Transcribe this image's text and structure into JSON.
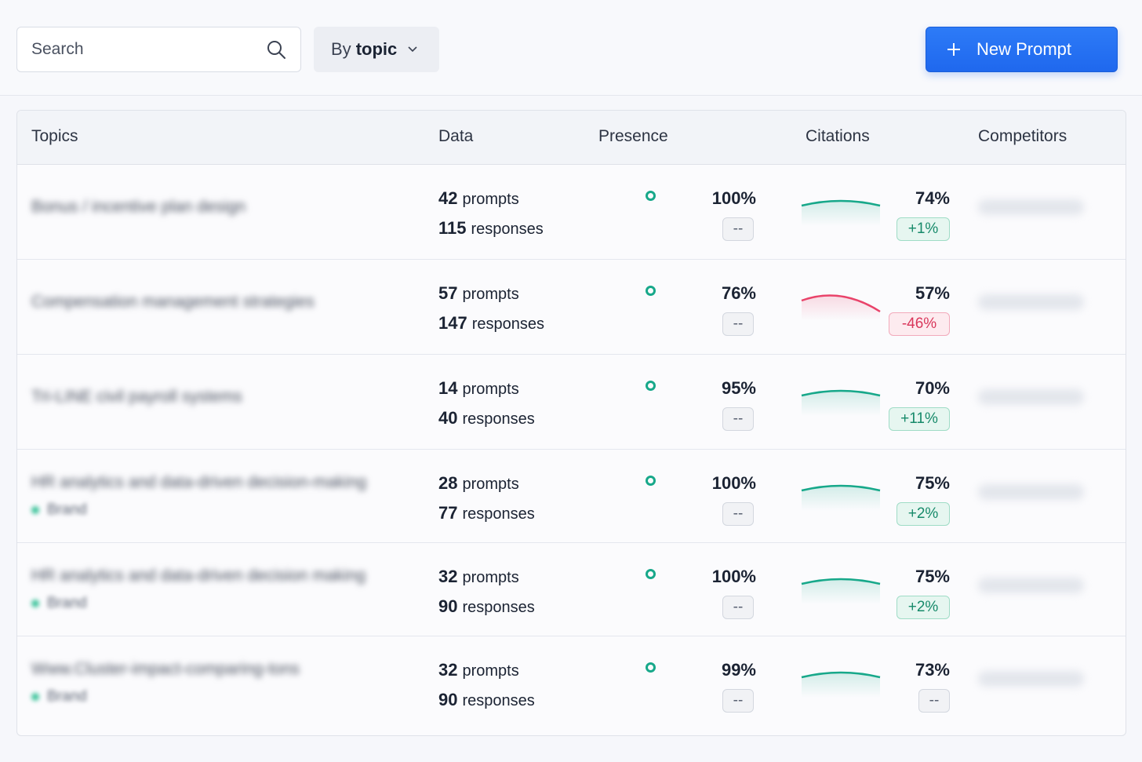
{
  "toolbar": {
    "search_placeholder": "Search",
    "group_prefix": "By",
    "group_value": "topic",
    "new_prompt_label": "New Prompt"
  },
  "table": {
    "headers": [
      "Topics",
      "Data",
      "Presence",
      "Citations",
      "Competitors"
    ],
    "rows": [
      {
        "topic": "Bonus / incentive plan design",
        "brand": "",
        "prompts": "42",
        "prompts_label": "prompts",
        "responses": "115",
        "responses_label": "responses",
        "presence": "100%",
        "presence_change": "--",
        "citations": "74%",
        "citations_change": "+1%",
        "trend": "up"
      },
      {
        "topic": "Compensation management strategies",
        "brand": "",
        "prompts": "57",
        "prompts_label": "prompts",
        "responses": "147",
        "responses_label": "responses",
        "presence": "76%",
        "presence_change": "--",
        "citations": "57%",
        "citations_change": "-46%",
        "trend": "down"
      },
      {
        "topic": "Tri-LINE civil payroll systems",
        "brand": "",
        "prompts": "14",
        "prompts_label": "prompts",
        "responses": "40",
        "responses_label": "responses",
        "presence": "95%",
        "presence_change": "--",
        "citations": "70%",
        "citations_change": "+11%",
        "trend": "up"
      },
      {
        "topic": "HR analytics and data-driven decision-making",
        "brand": "Brand",
        "prompts": "28",
        "prompts_label": "prompts",
        "responses": "77",
        "responses_label": "responses",
        "presence": "100%",
        "presence_change": "--",
        "citations": "75%",
        "citations_change": "+2%",
        "trend": "up"
      },
      {
        "topic": "HR analytics and data-driven decision making",
        "brand": "Brand",
        "prompts": "32",
        "prompts_label": "prompts",
        "responses": "90",
        "responses_label": "responses",
        "presence": "100%",
        "presence_change": "--",
        "citations": "75%",
        "citations_change": "+2%",
        "trend": "up"
      },
      {
        "topic": "Www.Cluster-impact-comparing-tons",
        "brand": "Brand",
        "prompts": "32",
        "prompts_label": "prompts",
        "responses": "90",
        "responses_label": "responses",
        "presence": "99%",
        "presence_change": "--",
        "citations": "73%",
        "citations_change": "--",
        "trend": "up"
      }
    ]
  },
  "colors": {
    "accent": "#1f68ee",
    "positive": "#17a88a",
    "negative": "#e9436a"
  }
}
